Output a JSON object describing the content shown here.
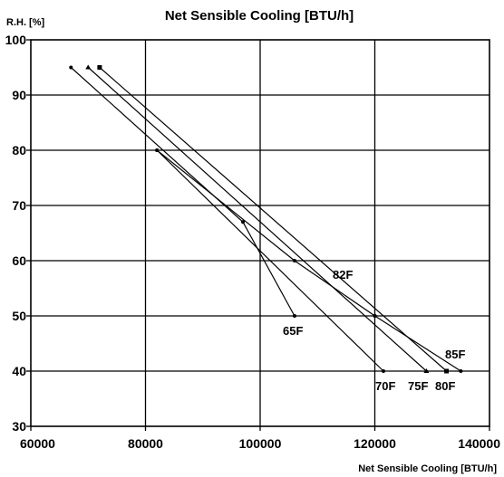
{
  "chart_data": {
    "type": "line",
    "title": "Net Sensible Cooling [BTU/h]",
    "xlabel": "Net Sensible Cooling [BTU/h]",
    "ylabel": "R.H. [%]",
    "xlim": [
      60000,
      140000
    ],
    "ylim": [
      30,
      100
    ],
    "x_ticks": [
      60000,
      80000,
      100000,
      120000,
      140000
    ],
    "y_ticks": [
      30,
      40,
      50,
      60,
      70,
      80,
      90,
      100
    ],
    "grid": true,
    "legend": "none",
    "series": [
      {
        "name": "65F",
        "marker": "circle",
        "x": [
          67000,
          97000,
          106000
        ],
        "y": [
          95,
          67,
          50
        ]
      },
      {
        "name": "70F",
        "marker": "circle",
        "x": [
          82000,
          121500
        ],
        "y": [
          80,
          40
        ]
      },
      {
        "name": "75F",
        "marker": "triangle",
        "x": [
          70000,
          129000
        ],
        "y": [
          95,
          40
        ]
      },
      {
        "name": "80F",
        "marker": "square",
        "x": [
          72000,
          132500
        ],
        "y": [
          95,
          40
        ]
      },
      {
        "name": "82F",
        "marker": "circle",
        "x": [
          82000,
          106000,
          120000
        ],
        "y": [
          80,
          60,
          50
        ]
      },
      {
        "name": "85F",
        "marker": "circle",
        "x": [
          120000,
          135000
        ],
        "y": [
          50,
          40
        ]
      }
    ]
  }
}
